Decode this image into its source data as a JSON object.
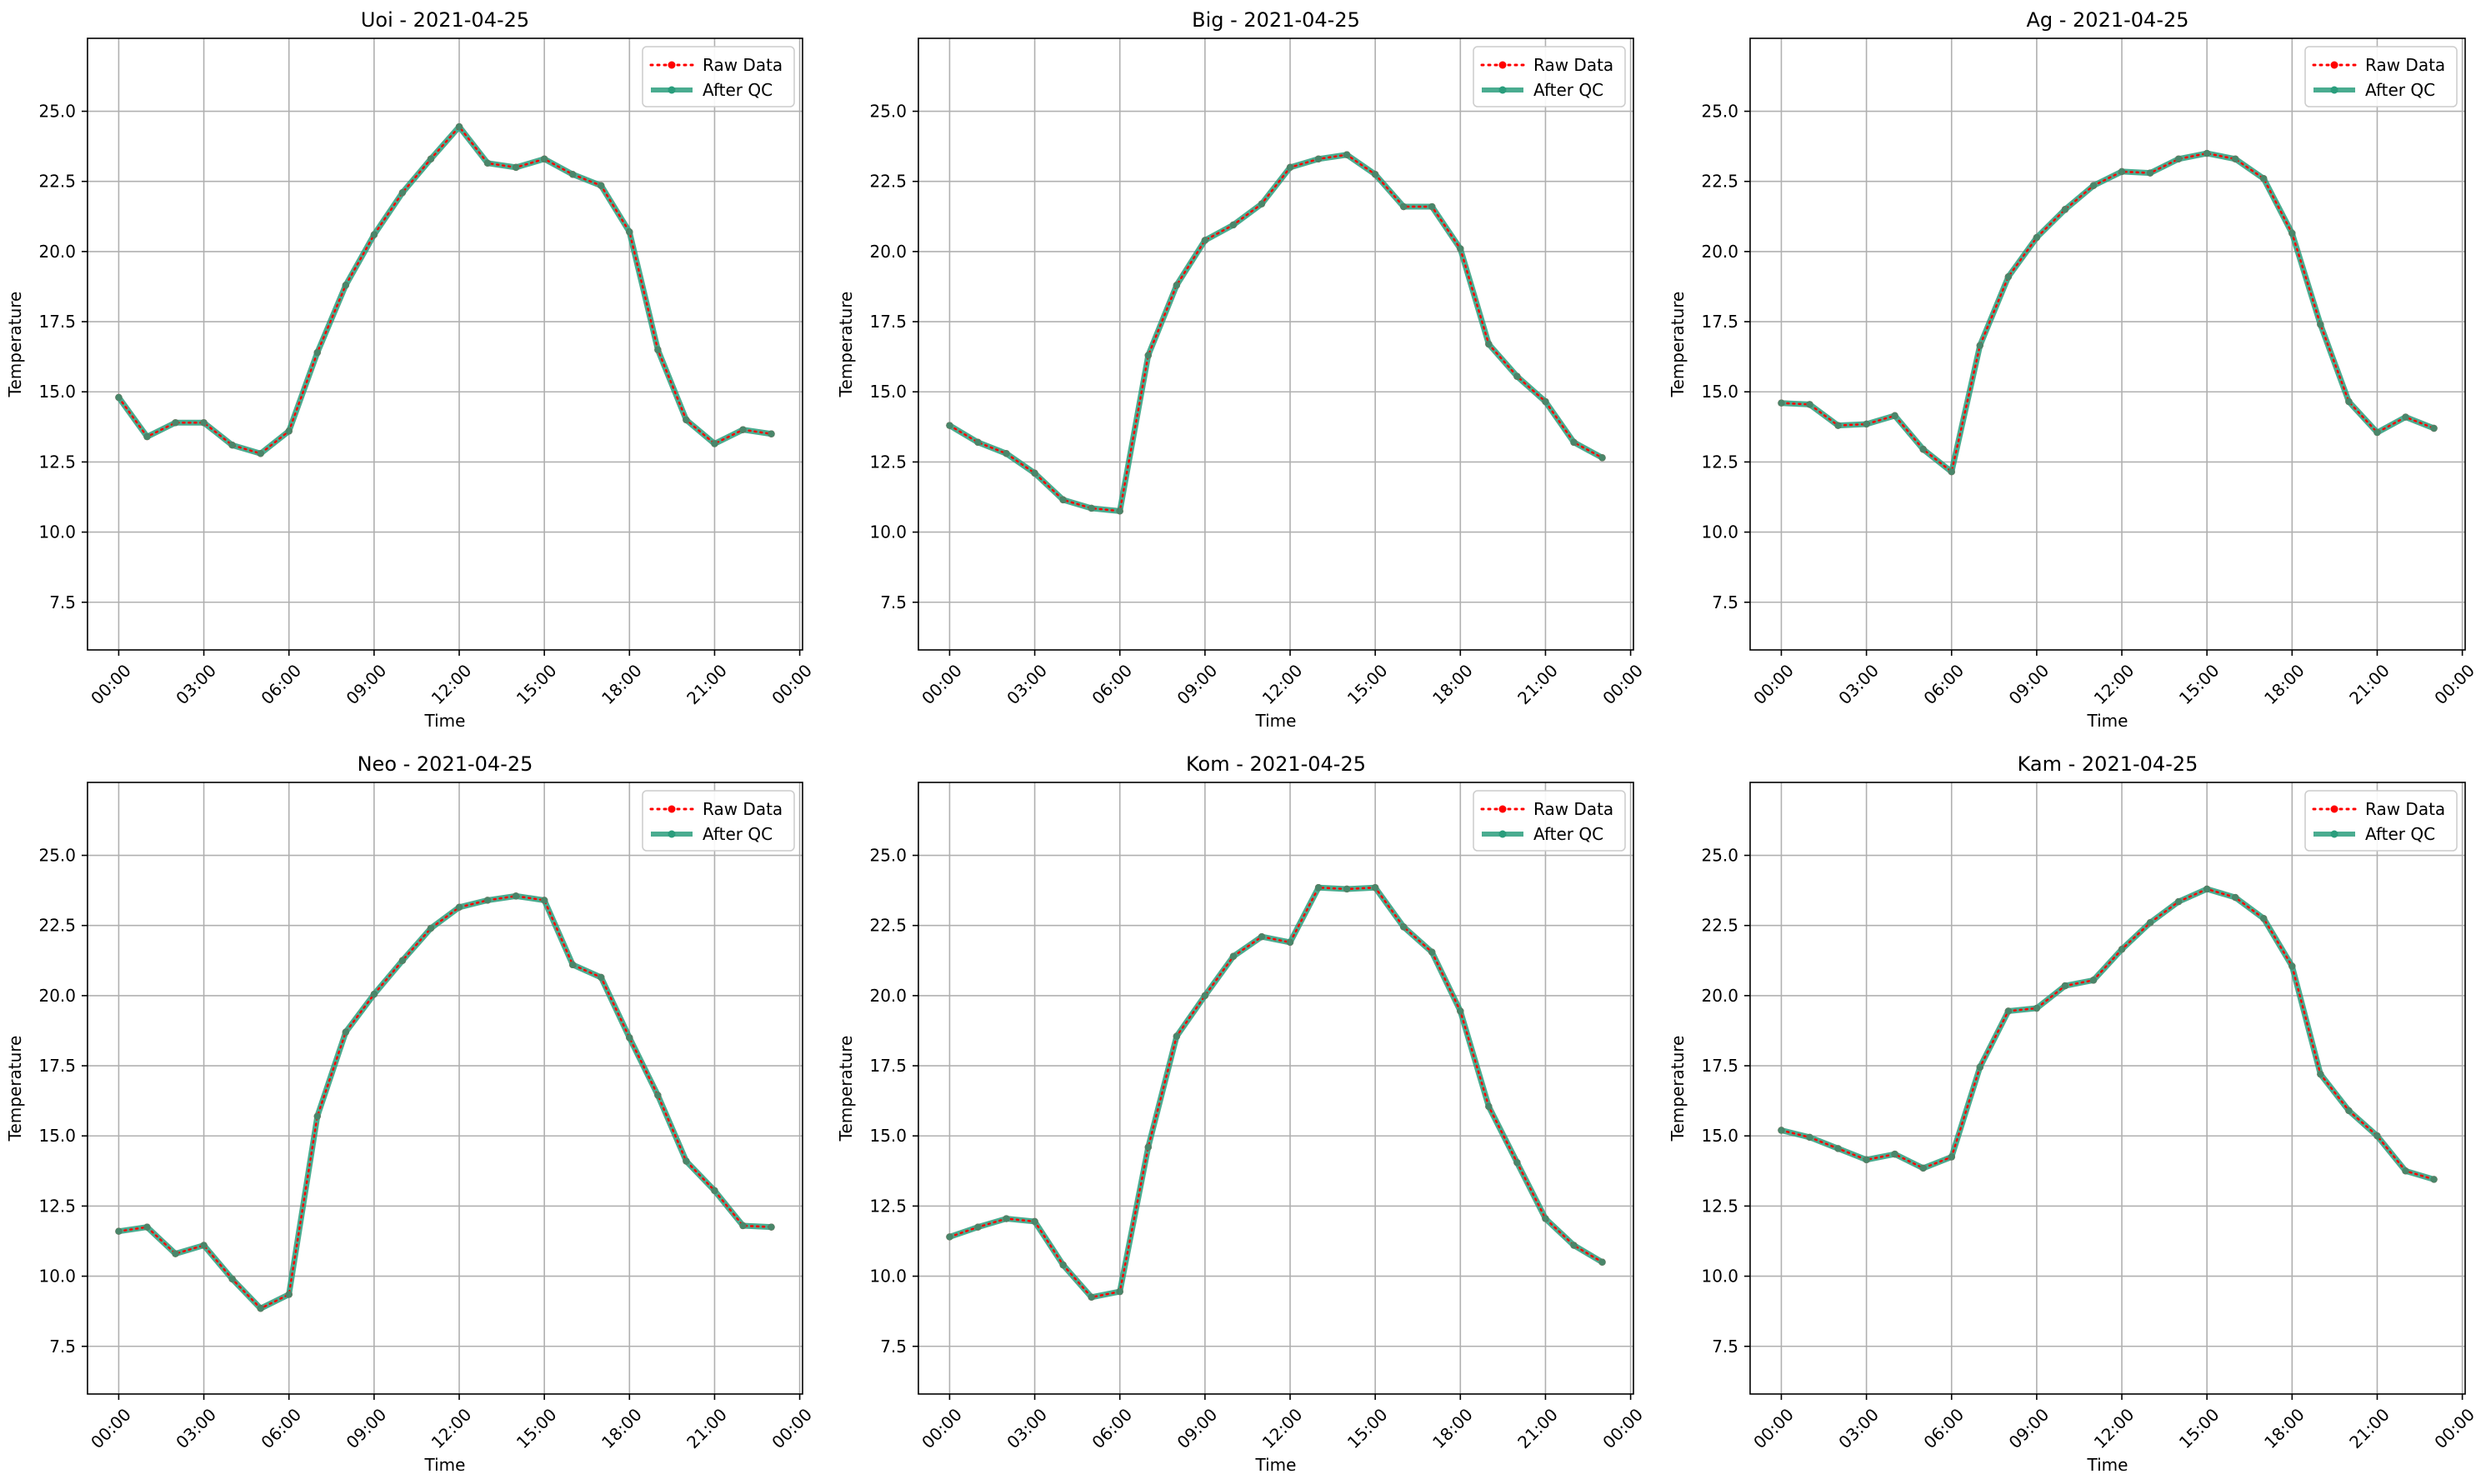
{
  "figure": {
    "background": "#ffffff"
  },
  "style": {
    "raw_color": "#ff0000",
    "qc_color": "#2a9d7c",
    "grid_color": "#b0b0b0"
  },
  "chart_data": [
    {
      "type": "line",
      "title": "Uoi - 2021-04-25",
      "xlabel": "Time",
      "ylabel": "Temperature",
      "ylim": [
        5.8,
        27.6
      ],
      "yticks": [
        7.5,
        10.0,
        12.5,
        15.0,
        17.5,
        20.0,
        22.5,
        25.0
      ],
      "yticklabels": [
        "7.5",
        "10.0",
        "12.5",
        "15.0",
        "17.5",
        "20.0",
        "22.5",
        "25.0"
      ],
      "xlim": [
        -1.1,
        24.1
      ],
      "xticks": [
        0,
        3,
        6,
        9,
        12,
        15,
        18,
        21,
        24
      ],
      "xticklabels": [
        "00:00",
        "03:00",
        "06:00",
        "09:00",
        "12:00",
        "15:00",
        "18:00",
        "21:00",
        "00:00"
      ],
      "grid": true,
      "legend": {
        "position": "top-right",
        "entries": [
          "Raw Data",
          "After QC"
        ]
      },
      "x": [
        0,
        1,
        2,
        3,
        4,
        5,
        6,
        7,
        8,
        9,
        10,
        11,
        12,
        13,
        14,
        15,
        16,
        17,
        18,
        19,
        20,
        21,
        22,
        23
      ],
      "series": [
        {
          "name": "Raw Data",
          "style": "dotted-marker",
          "color": "#ff0000",
          "values": [
            14.8,
            13.4,
            13.9,
            13.9,
            13.1,
            12.8,
            13.6,
            16.4,
            18.8,
            20.6,
            22.1,
            23.3,
            24.45,
            23.15,
            23.0,
            23.3,
            22.75,
            22.35,
            20.7,
            16.5,
            14.0,
            13.15,
            13.65,
            13.5
          ]
        },
        {
          "name": "After QC",
          "style": "solid-marker",
          "color": "#2a9d7c",
          "values": [
            14.8,
            13.4,
            13.9,
            13.9,
            13.1,
            12.8,
            13.6,
            16.4,
            18.8,
            20.6,
            22.1,
            23.3,
            24.45,
            23.15,
            23.0,
            23.3,
            22.75,
            22.35,
            20.7,
            16.5,
            14.0,
            13.15,
            13.65,
            13.5
          ]
        }
      ]
    },
    {
      "type": "line",
      "title": "Big - 2021-04-25",
      "xlabel": "Time",
      "ylabel": "Temperature",
      "ylim": [
        5.8,
        27.6
      ],
      "yticks": [
        7.5,
        10.0,
        12.5,
        15.0,
        17.5,
        20.0,
        22.5,
        25.0
      ],
      "yticklabels": [
        "7.5",
        "10.0",
        "12.5",
        "15.0",
        "17.5",
        "20.0",
        "22.5",
        "25.0"
      ],
      "xlim": [
        -1.1,
        24.1
      ],
      "xticks": [
        0,
        3,
        6,
        9,
        12,
        15,
        18,
        21,
        24
      ],
      "xticklabels": [
        "00:00",
        "03:00",
        "06:00",
        "09:00",
        "12:00",
        "15:00",
        "18:00",
        "21:00",
        "00:00"
      ],
      "grid": true,
      "legend": {
        "position": "top-right",
        "entries": [
          "Raw Data",
          "After QC"
        ]
      },
      "x": [
        0,
        1,
        2,
        3,
        4,
        5,
        6,
        7,
        8,
        9,
        10,
        11,
        12,
        13,
        14,
        15,
        16,
        17,
        18,
        19,
        20,
        21,
        22,
        23
      ],
      "series": [
        {
          "name": "Raw Data",
          "style": "dotted-marker",
          "color": "#ff0000",
          "values": [
            13.8,
            13.2,
            12.8,
            12.1,
            11.15,
            10.85,
            10.75,
            16.3,
            18.8,
            20.4,
            20.95,
            21.7,
            23.0,
            23.3,
            23.45,
            22.75,
            21.6,
            21.6,
            20.1,
            16.7,
            15.55,
            14.65,
            13.2,
            12.65
          ]
        },
        {
          "name": "After QC",
          "style": "solid-marker",
          "color": "#2a9d7c",
          "values": [
            13.8,
            13.2,
            12.8,
            12.1,
            11.15,
            10.85,
            10.75,
            16.3,
            18.8,
            20.4,
            20.95,
            21.7,
            23.0,
            23.3,
            23.45,
            22.75,
            21.6,
            21.6,
            20.1,
            16.7,
            15.55,
            14.65,
            13.2,
            12.65
          ]
        }
      ]
    },
    {
      "type": "line",
      "title": "Ag - 2021-04-25",
      "xlabel": "Time",
      "ylabel": "Temperature",
      "ylim": [
        5.8,
        27.6
      ],
      "yticks": [
        7.5,
        10.0,
        12.5,
        15.0,
        17.5,
        20.0,
        22.5,
        25.0
      ],
      "yticklabels": [
        "7.5",
        "10.0",
        "12.5",
        "15.0",
        "17.5",
        "20.0",
        "22.5",
        "25.0"
      ],
      "xlim": [
        -1.1,
        24.1
      ],
      "xticks": [
        0,
        3,
        6,
        9,
        12,
        15,
        18,
        21,
        24
      ],
      "xticklabels": [
        "00:00",
        "03:00",
        "06:00",
        "09:00",
        "12:00",
        "15:00",
        "18:00",
        "21:00",
        "00:00"
      ],
      "grid": true,
      "legend": {
        "position": "top-right",
        "entries": [
          "Raw Data",
          "After QC"
        ]
      },
      "x": [
        0,
        1,
        2,
        3,
        4,
        5,
        6,
        7,
        8,
        9,
        10,
        11,
        12,
        13,
        14,
        15,
        16,
        17,
        18,
        19,
        20,
        21,
        22,
        23
      ],
      "series": [
        {
          "name": "Raw Data",
          "style": "dotted-marker",
          "color": "#ff0000",
          "values": [
            14.6,
            14.55,
            13.8,
            13.85,
            14.15,
            12.95,
            12.15,
            16.65,
            19.1,
            20.5,
            21.5,
            22.35,
            22.85,
            22.8,
            23.3,
            23.5,
            23.3,
            22.6,
            20.65,
            17.4,
            14.65,
            13.55,
            14.1,
            13.7
          ]
        },
        {
          "name": "After QC",
          "style": "solid-marker",
          "color": "#2a9d7c",
          "values": [
            14.6,
            14.55,
            13.8,
            13.85,
            14.15,
            12.95,
            12.15,
            16.65,
            19.1,
            20.5,
            21.5,
            22.35,
            22.85,
            22.8,
            23.3,
            23.5,
            23.3,
            22.6,
            20.65,
            17.4,
            14.65,
            13.55,
            14.1,
            13.7
          ]
        }
      ]
    },
    {
      "type": "line",
      "title": "Neo - 2021-04-25",
      "xlabel": "Time",
      "ylabel": "Temperature",
      "ylim": [
        5.8,
        27.6
      ],
      "yticks": [
        7.5,
        10.0,
        12.5,
        15.0,
        17.5,
        20.0,
        22.5,
        25.0
      ],
      "yticklabels": [
        "7.5",
        "10.0",
        "12.5",
        "15.0",
        "17.5",
        "20.0",
        "22.5",
        "25.0"
      ],
      "xlim": [
        -1.1,
        24.1
      ],
      "xticks": [
        0,
        3,
        6,
        9,
        12,
        15,
        18,
        21,
        24
      ],
      "xticklabels": [
        "00:00",
        "03:00",
        "06:00",
        "09:00",
        "12:00",
        "15:00",
        "18:00",
        "21:00",
        "00:00"
      ],
      "grid": true,
      "legend": {
        "position": "top-right",
        "entries": [
          "Raw Data",
          "After QC"
        ]
      },
      "x": [
        0,
        1,
        2,
        3,
        4,
        5,
        6,
        7,
        8,
        9,
        10,
        11,
        12,
        13,
        14,
        15,
        16,
        17,
        18,
        19,
        20,
        21,
        22,
        23
      ],
      "series": [
        {
          "name": "Raw Data",
          "style": "dotted-marker",
          "color": "#ff0000",
          "values": [
            11.6,
            11.75,
            10.8,
            11.1,
            9.9,
            8.85,
            9.35,
            15.7,
            18.7,
            20.05,
            21.25,
            22.4,
            23.15,
            23.4,
            23.55,
            23.4,
            21.1,
            20.65,
            18.5,
            16.45,
            14.1,
            13.05,
            11.8,
            11.75
          ]
        },
        {
          "name": "After QC",
          "style": "solid-marker",
          "color": "#2a9d7c",
          "values": [
            11.6,
            11.75,
            10.8,
            11.1,
            9.9,
            8.85,
            9.35,
            15.7,
            18.7,
            20.05,
            21.25,
            22.4,
            23.15,
            23.4,
            23.55,
            23.4,
            21.1,
            20.65,
            18.5,
            16.45,
            14.1,
            13.05,
            11.8,
            11.75
          ]
        }
      ]
    },
    {
      "type": "line",
      "title": "Kom - 2021-04-25",
      "xlabel": "Time",
      "ylabel": "Temperature",
      "ylim": [
        5.8,
        27.6
      ],
      "yticks": [
        7.5,
        10.0,
        12.5,
        15.0,
        17.5,
        20.0,
        22.5,
        25.0
      ],
      "yticklabels": [
        "7.5",
        "10.0",
        "12.5",
        "15.0",
        "17.5",
        "20.0",
        "22.5",
        "25.0"
      ],
      "xlim": [
        -1.1,
        24.1
      ],
      "xticks": [
        0,
        3,
        6,
        9,
        12,
        15,
        18,
        21,
        24
      ],
      "xticklabels": [
        "00:00",
        "03:00",
        "06:00",
        "09:00",
        "12:00",
        "15:00",
        "18:00",
        "21:00",
        "00:00"
      ],
      "grid": true,
      "legend": {
        "position": "top-right",
        "entries": [
          "Raw Data",
          "After QC"
        ]
      },
      "x": [
        0,
        1,
        2,
        3,
        4,
        5,
        6,
        7,
        8,
        9,
        10,
        11,
        12,
        13,
        14,
        15,
        16,
        17,
        18,
        19,
        20,
        21,
        22,
        23
      ],
      "series": [
        {
          "name": "Raw Data",
          "style": "dotted-marker",
          "color": "#ff0000",
          "values": [
            11.4,
            11.75,
            12.05,
            11.95,
            10.4,
            9.25,
            9.45,
            14.6,
            18.55,
            20.0,
            21.4,
            22.1,
            21.9,
            23.85,
            23.8,
            23.85,
            22.45,
            21.55,
            19.45,
            16.05,
            14.05,
            12.05,
            11.1,
            10.5
          ]
        },
        {
          "name": "After QC",
          "style": "solid-marker",
          "color": "#2a9d7c",
          "values": [
            11.4,
            11.75,
            12.05,
            11.95,
            10.4,
            9.25,
            9.45,
            14.6,
            18.55,
            20.0,
            21.4,
            22.1,
            21.9,
            23.85,
            23.8,
            23.85,
            22.45,
            21.55,
            19.45,
            16.05,
            14.05,
            12.05,
            11.1,
            10.5
          ]
        }
      ]
    },
    {
      "type": "line",
      "title": "Kam - 2021-04-25",
      "xlabel": "Time",
      "ylabel": "Temperature",
      "ylim": [
        5.8,
        27.6
      ],
      "yticks": [
        7.5,
        10.0,
        12.5,
        15.0,
        17.5,
        20.0,
        22.5,
        25.0
      ],
      "yticklabels": [
        "7.5",
        "10.0",
        "12.5",
        "15.0",
        "17.5",
        "20.0",
        "22.5",
        "25.0"
      ],
      "xlim": [
        -1.1,
        24.1
      ],
      "xticks": [
        0,
        3,
        6,
        9,
        12,
        15,
        18,
        21,
        24
      ],
      "xticklabels": [
        "00:00",
        "03:00",
        "06:00",
        "09:00",
        "12:00",
        "15:00",
        "18:00",
        "21:00",
        "00:00"
      ],
      "grid": true,
      "legend": {
        "position": "top-right",
        "entries": [
          "Raw Data",
          "After QC"
        ]
      },
      "x": [
        0,
        1,
        2,
        3,
        4,
        5,
        6,
        7,
        8,
        9,
        10,
        11,
        12,
        13,
        14,
        15,
        16,
        17,
        18,
        19,
        20,
        21,
        22,
        23
      ],
      "series": [
        {
          "name": "Raw Data",
          "style": "dotted-marker",
          "color": "#ff0000",
          "values": [
            15.2,
            14.95,
            14.55,
            14.15,
            14.35,
            13.85,
            14.25,
            17.45,
            19.45,
            19.55,
            20.35,
            20.55,
            21.65,
            22.6,
            23.35,
            23.8,
            23.5,
            22.75,
            21.05,
            17.2,
            15.9,
            15.0,
            13.75,
            13.45
          ]
        },
        {
          "name": "After QC",
          "style": "solid-marker",
          "color": "#2a9d7c",
          "values": [
            15.2,
            14.95,
            14.55,
            14.15,
            14.35,
            13.85,
            14.25,
            17.45,
            19.45,
            19.55,
            20.35,
            20.55,
            21.65,
            22.6,
            23.35,
            23.8,
            23.5,
            22.75,
            21.05,
            17.2,
            15.9,
            15.0,
            13.75,
            13.45
          ]
        }
      ]
    }
  ]
}
